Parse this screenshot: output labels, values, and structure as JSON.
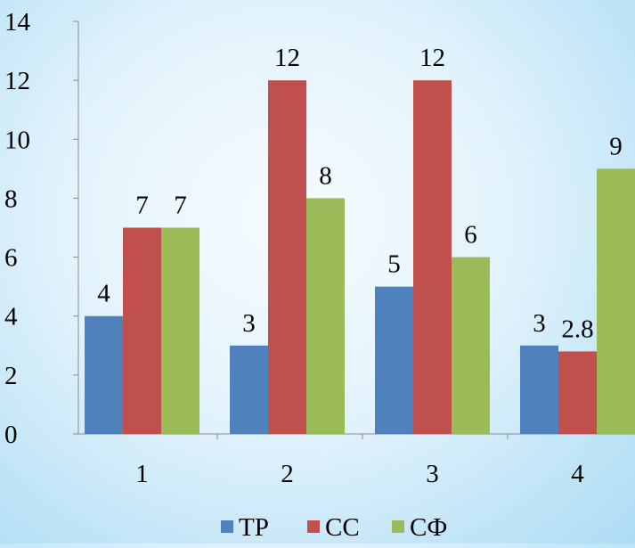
{
  "chart_data": {
    "type": "bar",
    "title": "",
    "xlabel": "",
    "ylabel": "",
    "categories": [
      "1",
      "2",
      "3",
      "4"
    ],
    "series": [
      {
        "name": "TP",
        "values": [
          4,
          3,
          5,
          3
        ],
        "labels": [
          "4",
          "3",
          "5",
          "3"
        ],
        "color": "#4f81bd"
      },
      {
        "name": "CC",
        "values": [
          7,
          12,
          12,
          2.8
        ],
        "labels": [
          "7",
          "12",
          "12",
          "2.8"
        ],
        "color": "#c0504d"
      },
      {
        "name": "CФ",
        "values": [
          7,
          8,
          6,
          9
        ],
        "labels": [
          "7",
          "8",
          "6",
          "9"
        ],
        "color": "#9bbb59"
      }
    ],
    "ylim": [
      0,
      14
    ],
    "yticks": [
      0,
      2,
      4,
      6,
      8,
      10,
      12,
      14
    ],
    "ytick_labels": [
      "0",
      "2",
      "4",
      "6",
      "8",
      "10",
      "12",
      "14"
    ],
    "grid": false,
    "legend": "bottom"
  }
}
